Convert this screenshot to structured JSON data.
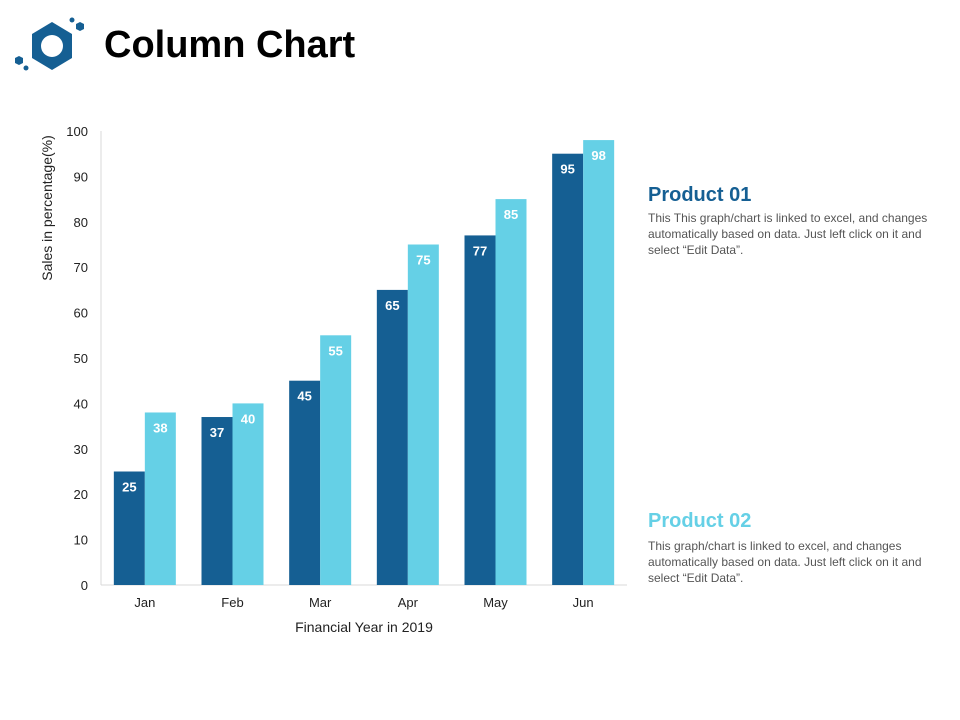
{
  "title": "Column Chart",
  "products": [
    {
      "title": "Product 01",
      "desc": "This This graph/chart is linked to excel, and changes automatically based on data. Just left click on it and select “Edit Data”.",
      "color": "#155F93"
    },
    {
      "title": "Product 02",
      "desc": "This graph/chart is linked to excel, and changes automatically based on data. Just left click on it and select “Edit Data”.",
      "color": "#65D0E6"
    }
  ],
  "chart_data": {
    "type": "bar",
    "title": "",
    "xlabel": "Financial Year in 2019",
    "ylabel": "Sales in percentage(%)",
    "ylim": [
      0,
      100
    ],
    "yticks": [
      0,
      10,
      20,
      30,
      40,
      50,
      60,
      70,
      80,
      90,
      100
    ],
    "grid": false,
    "categories": [
      "Jan",
      "Feb",
      "Mar",
      "Apr",
      "May",
      "Jun"
    ],
    "series": [
      {
        "name": "Product 01",
        "color": "#155F93",
        "values": [
          25,
          37,
          45,
          65,
          77,
          95
        ]
      },
      {
        "name": "Product 02",
        "color": "#65D0E6",
        "values": [
          38,
          40,
          55,
          75,
          85,
          98
        ]
      }
    ]
  }
}
